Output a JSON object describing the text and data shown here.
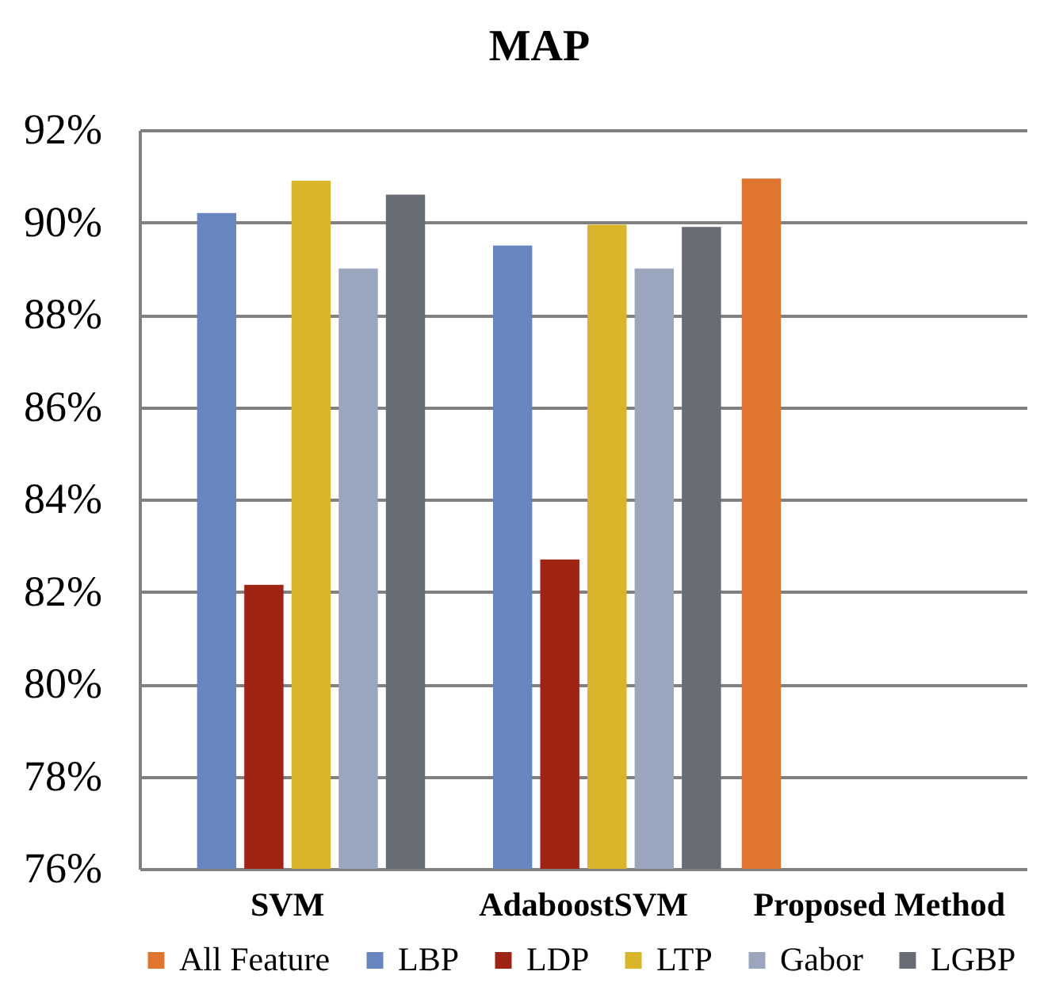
{
  "chart_data": {
    "type": "bar",
    "title": "MAP",
    "categories": [
      "SVM",
      "AdaboostSVM",
      "Proposed Method"
    ],
    "series": [
      {
        "name": "All Feature",
        "color": "#e07530",
        "values": [
          null,
          null,
          90.95
        ]
      },
      {
        "name": "LBP",
        "color": "#6785c1",
        "values": [
          90.2,
          89.5,
          null
        ]
      },
      {
        "name": "LDP",
        "color": "#a02414",
        "values": [
          82.15,
          82.7,
          null
        ]
      },
      {
        "name": "LTP",
        "color": "#d9b52a",
        "values": [
          90.9,
          89.95,
          null
        ]
      },
      {
        "name": "Gabor",
        "color": "#9aa5be",
        "values": [
          89.0,
          89.0,
          null
        ]
      },
      {
        "name": "LGBP",
        "color": "#686c75",
        "values": [
          90.6,
          89.9,
          null
        ]
      }
    ],
    "ylim": [
      76,
      92
    ],
    "yticks": [
      {
        "value": 76,
        "label": "76%"
      },
      {
        "value": 78,
        "label": "78%"
      },
      {
        "value": 80,
        "label": "80%"
      },
      {
        "value": 82,
        "label": "82%"
      },
      {
        "value": 84,
        "label": "84%"
      },
      {
        "value": 86,
        "label": "86%"
      },
      {
        "value": 88,
        "label": "88%"
      },
      {
        "value": 90,
        "label": "90%"
      },
      {
        "value": 92,
        "label": "92%"
      }
    ],
    "grid": "y",
    "legend": "bottom"
  }
}
